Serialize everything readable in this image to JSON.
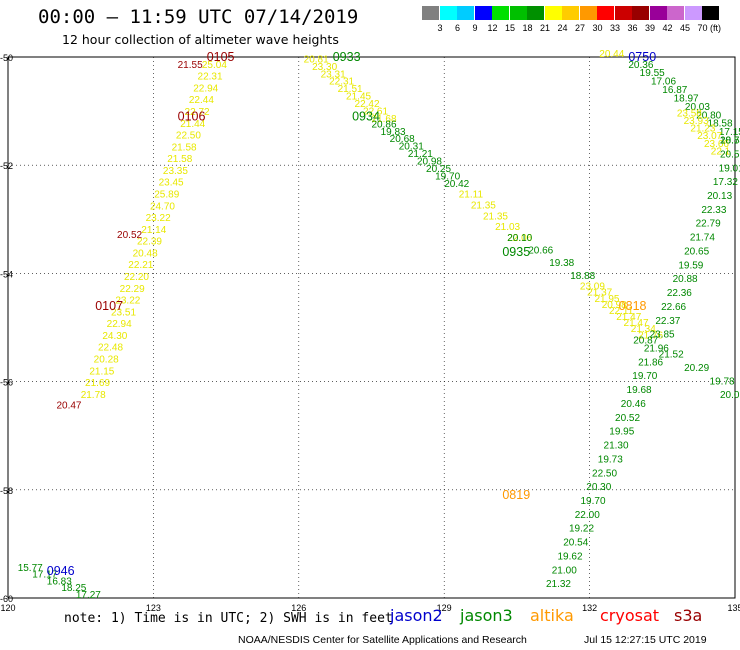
{
  "title": "00:00 – 11:59 UTC 07/14/2019",
  "subtitle": "12 hour collection of altimeter wave heights",
  "scale": {
    "colors": [
      "#808080",
      "#00ffff",
      "#00ccff",
      "#0000ff",
      "#00e000",
      "#00c000",
      "#009000",
      "#ffff00",
      "#ffcc00",
      "#ff9900",
      "#ff0000",
      "#cc0000",
      "#990000",
      "#990099",
      "#cc66cc",
      "#cc99ff",
      "#000000"
    ],
    "labels": [
      "3",
      "6",
      "9",
      "12",
      "15",
      "18",
      "21",
      "24",
      "27",
      "30",
      "33",
      "36",
      "39",
      "42",
      "45",
      "70 (ft)"
    ]
  },
  "axes": {
    "lat_ticks": [
      "-50",
      "-52",
      "-54",
      "-56",
      "-58",
      "-60"
    ],
    "lon_ticks": [
      "120",
      "123",
      "126",
      "129",
      "132",
      "135"
    ]
  },
  "colors": {
    "jason2": "#0000cc",
    "jason3": "#008800",
    "altika": "#ff9900",
    "cryosat": "#ff0000",
    "s3a": "#990000",
    "yellow": "#e8e800"
  },
  "tracks": [
    {
      "sat": "yellow",
      "lon0": 121.5,
      "lat0": -56.3,
      "lon1": 124.0,
      "lat1": -50.2,
      "values": [
        "21.78",
        "21.69",
        "21.15",
        "20.28",
        "22.48",
        "24.30",
        "22.94",
        "23.51",
        "23.22",
        "22.29",
        "22.20",
        "22.21",
        "20.48",
        "22.39",
        "21.14",
        "23.22",
        "24.70",
        "25.89",
        "23.45",
        "23.35",
        "21.58",
        "21.58",
        "22.50",
        "21.44",
        "22.72",
        "22.44",
        "22.94",
        "22.31",
        "25.04"
      ]
    },
    {
      "sat": "s3a",
      "lon0": 121.0,
      "lat0": -56.5,
      "lon1": 123.5,
      "lat1": -50.2,
      "values": [
        "20.47",
        "20.52",
        "21.55"
      ]
    },
    {
      "sat": "yellow",
      "lon0": 126.1,
      "lat0": -50.1,
      "lon1": 127.5,
      "lat1": -51.2,
      "values": [
        "20.81",
        "23.30",
        "23.31",
        "22.31",
        "21.51",
        "21.45",
        "22.42",
        "22.61",
        "21.68"
      ]
    },
    {
      "sat": "jason3",
      "lon0": 127.5,
      "lat0": -51.3,
      "lon1": 129.0,
      "lat1": -52.4,
      "values": [
        "20.86",
        "19.83",
        "20.68",
        "20.31",
        "21.21",
        "20.98",
        "20.25",
        "19.70",
        "20.42"
      ]
    },
    {
      "sat": "yellow",
      "lon0": 129.3,
      "lat0": -52.6,
      "lon1": 130.3,
      "lat1": -53.4,
      "values": [
        "21.11",
        "21.35",
        "21.35",
        "21.03",
        "22.06"
      ]
    },
    {
      "sat": "jason3",
      "lon0": 130.3,
      "lat0": -53.4,
      "lon1": 131.6,
      "lat1": -54.1,
      "values": [
        "20.10",
        "20.66",
        "19.38",
        "18.88"
      ]
    },
    {
      "sat": "yellow",
      "lon0": 131.8,
      "lat0": -54.3,
      "lon1": 133.0,
      "lat1": -55.2,
      "values": [
        "23.09",
        "21.37",
        "21.95",
        "20.98",
        "22.11",
        "21.47",
        "21.47",
        "21.34",
        "21.76"
      ]
    },
    {
      "sat": "jason3",
      "lon0": 132.9,
      "lat0": -55.3,
      "lon1": 135.0,
      "lat1": -56.3,
      "values": [
        "20.87",
        "21.52",
        "20.29",
        "19.78",
        "20.0"
      ]
    },
    {
      "sat": "yellow",
      "lon0": 132.2,
      "lat0": -50.0,
      "lon1": 132.6,
      "lat1": -50.0,
      "values": [
        "20.44"
      ]
    },
    {
      "sat": "jason3",
      "lon0": 132.8,
      "lat0": -50.2,
      "lon1": 134.9,
      "lat1": -51.6,
      "values": [
        "20.36",
        "19.55",
        "17.06",
        "16.87",
        "18.97",
        "20.03",
        "20.80",
        "18.58",
        "17.15",
        "18.7"
      ]
    },
    {
      "sat": "yellow",
      "lon0": 133.8,
      "lat0": -51.1,
      "lon1": 134.5,
      "lat1": -51.8,
      "values": [
        "23.58",
        "23.93",
        "21.23",
        "23.07",
        "23.66",
        "22.1"
      ]
    },
    {
      "sat": "jason3",
      "lon0": 134.9,
      "lat0": -51.6,
      "lon1": 131.1,
      "lat1": -59.8,
      "values": [
        "20.54",
        "20.52",
        "19.01",
        "17.32",
        "20.13",
        "22.33",
        "22.79",
        "21.74",
        "20.65",
        "19.59",
        "20.88",
        "22.36",
        "22.66",
        "22.37",
        "23.85",
        "21.96",
        "21.86",
        "19.70",
        "19.68",
        "20.46",
        "20.52",
        "19.95",
        "21.30",
        "19.73",
        "22.50",
        "20.30",
        "19.70",
        "22.00",
        "19.22",
        "20.54",
        "19.62",
        "21.00",
        "21.32"
      ]
    },
    {
      "sat": "jason3",
      "lon0": 120.2,
      "lat0": -59.5,
      "lon1": 121.4,
      "lat1": -60.0,
      "values": [
        "15.77",
        "17.17",
        "16.83",
        "18.25",
        "17.27"
      ]
    }
  ],
  "pass_labels": [
    {
      "text": "0105",
      "sat": "s3a",
      "lon": 124.1,
      "lat": -50.0
    },
    {
      "text": "0106",
      "sat": "s3a",
      "lon": 123.5,
      "lat": -51.1
    },
    {
      "text": "0107",
      "sat": "s3a",
      "lon": 121.8,
      "lat": -54.6
    },
    {
      "text": "0933",
      "sat": "jason3",
      "lon": 126.7,
      "lat": -50.0
    },
    {
      "text": "0934",
      "sat": "jason3",
      "lon": 127.1,
      "lat": -51.1
    },
    {
      "text": "0935",
      "sat": "jason3",
      "lon": 130.2,
      "lat": -53.6
    },
    {
      "text": "0750",
      "sat": "jason2",
      "lon": 132.8,
      "lat": -50.0
    },
    {
      "text": "0818",
      "sat": "altika",
      "lon": 132.6,
      "lat": -54.6
    },
    {
      "text": "0819",
      "sat": "altika",
      "lon": 130.2,
      "lat": -58.1
    },
    {
      "text": "0946",
      "sat": "jason2",
      "lon": 120.8,
      "lat": -59.5
    }
  ],
  "note": "note: 1) Time is in UTC; 2) SWH is in feet",
  "legend": {
    "jason2": "jason2",
    "jason3": "jason3",
    "altika": "altika",
    "cryosat": "cryosat",
    "s3a": "s3a"
  },
  "footer": {
    "credit": "NOAA/NESDIS Center for Satellite Applications and Research",
    "timestamp": "Jul 15 12:27:15 UTC 2019"
  }
}
